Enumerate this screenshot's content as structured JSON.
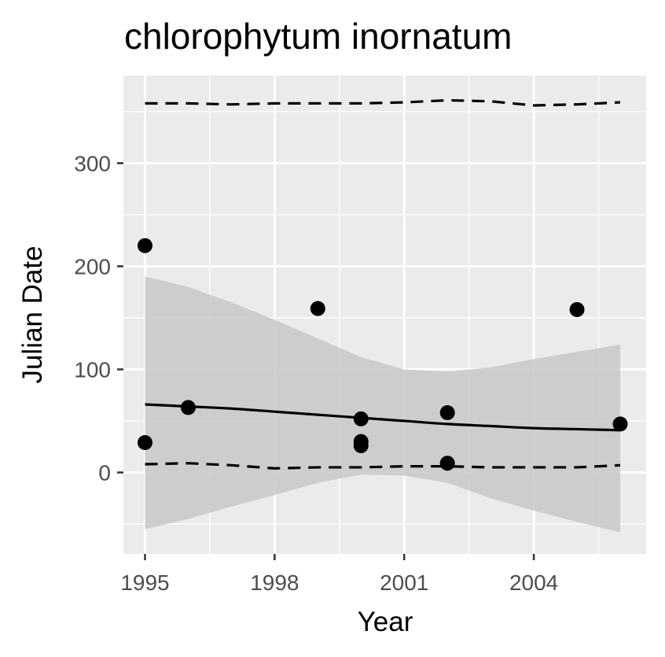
{
  "chart_data": {
    "type": "scatter",
    "title": "chlorophytum inornatum",
    "xlabel": "Year",
    "ylabel": "Julian Date",
    "xlim": [
      1994.5,
      2006.6
    ],
    "ylim": [
      -79,
      385
    ],
    "x_ticks": [
      1995,
      1998,
      2001,
      2004
    ],
    "y_ticks": [
      0,
      100,
      200,
      300
    ],
    "grid": true,
    "legend": "none",
    "colors": {
      "panel": "#ebebeb",
      "grid": "#ffffff",
      "points": "#000000",
      "ribbon": "#c8c8c8",
      "tick_label": "#4d4d4d"
    },
    "points": [
      {
        "x": 1995.0,
        "y": 220
      },
      {
        "x": 1995.0,
        "y": 29
      },
      {
        "x": 1996.0,
        "y": 63
      },
      {
        "x": 1999.0,
        "y": 159
      },
      {
        "x": 2000.0,
        "y": 52
      },
      {
        "x": 2000.0,
        "y": 30
      },
      {
        "x": 2000.0,
        "y": 26
      },
      {
        "x": 2002.0,
        "y": 58
      },
      {
        "x": 2002.0,
        "y": 9
      },
      {
        "x": 2005.0,
        "y": 158
      },
      {
        "x": 2006.0,
        "y": 47
      }
    ],
    "fit_line": {
      "x": [
        1995,
        1996,
        1997,
        1998,
        1999,
        2000,
        2001,
        2002,
        2003,
        2004,
        2005,
        2006
      ],
      "y": [
        66,
        64,
        62,
        59,
        56,
        53,
        50,
        47,
        45,
        43,
        42,
        41
      ]
    },
    "confidence_band": {
      "x": [
        1995,
        1996,
        1997,
        1998,
        1999,
        2000,
        2001,
        2002,
        2003,
        2004,
        2005,
        2006
      ],
      "lower": [
        -55,
        -45,
        -33,
        -22,
        -10,
        -2,
        -3,
        -10,
        -25,
        -37,
        -48,
        -58
      ],
      "upper": [
        190,
        180,
        165,
        148,
        130,
        112,
        100,
        98,
        102,
        110,
        117,
        124
      ]
    },
    "upper_dashed": {
      "x": [
        1995,
        1996,
        1997,
        1998,
        1999,
        2000,
        2001,
        2002,
        2003,
        2004,
        2005,
        2006
      ],
      "y": [
        358,
        358,
        357,
        358,
        358,
        358,
        359,
        361,
        360,
        356,
        357,
        359
      ]
    },
    "lower_dashed": {
      "x": [
        1995,
        1996,
        1997,
        1998,
        1999,
        2000,
        2001,
        2002,
        2003,
        2004,
        2005,
        2006
      ],
      "y": [
        8,
        9,
        7,
        4,
        5,
        5,
        6,
        6,
        5,
        5,
        5,
        7
      ]
    }
  }
}
